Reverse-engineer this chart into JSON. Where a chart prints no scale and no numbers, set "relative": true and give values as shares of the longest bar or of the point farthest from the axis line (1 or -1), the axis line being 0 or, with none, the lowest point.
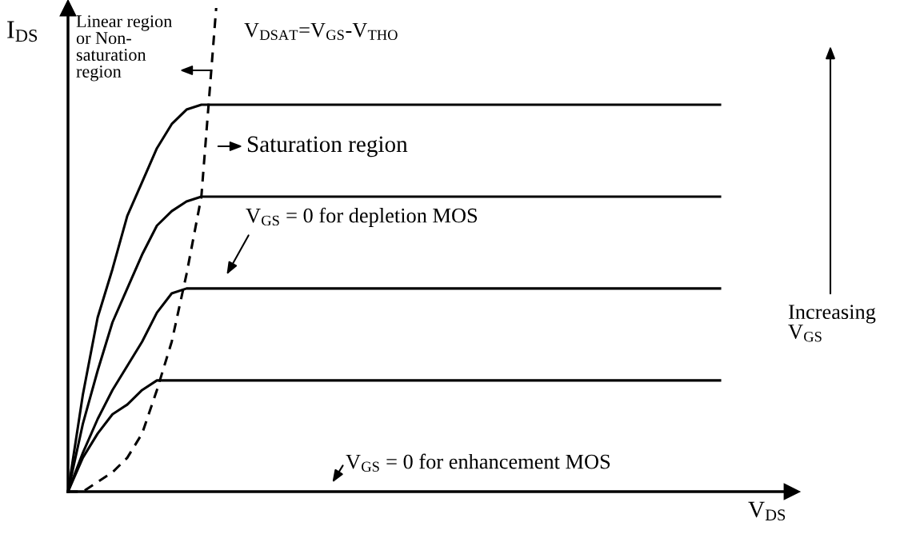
{
  "chart_data": {
    "type": "line",
    "relative": true,
    "marker": "none",
    "xlabel": "V$_{DS}$",
    "ylabel": "I$_{DS}$",
    "categories": [
      null,
      null,
      null,
      null,
      null,
      null,
      null,
      null,
      null,
      null,
      null,
      null,
      null,
      null,
      null,
      null,
      null,
      null,
      null,
      null,
      null,
      null,
      null,
      null,
      null,
      null,
      null,
      null,
      null,
      null,
      null,
      null,
      null,
      null,
      null,
      null,
      null,
      null,
      null,
      null,
      null,
      null,
      null,
      null,
      null
    ],
    "series": [
      {
        "color": "#000000",
        "line_style": "solid",
        "values": [
          0,
          0.2,
          0.36,
          0.46,
          0.57,
          0.64,
          0.71,
          0.76,
          0.79,
          0.8,
          0.8,
          0.8,
          0.8,
          0.8,
          0.8,
          0.8,
          0.8,
          0.8,
          0.8,
          0.8,
          0.8,
          0.8,
          0.8,
          0.8,
          0.8,
          0.8,
          0.8,
          0.8,
          0.8,
          0.8,
          0.8,
          0.8,
          0.8,
          0.8,
          0.8,
          0.8,
          0.8,
          0.8,
          0.8,
          0.8,
          0.8,
          0.8,
          0.8,
          0.8,
          0.8
        ]
      },
      {
        "color": "#000000",
        "line_style": "solid",
        "values": [
          0,
          0.14,
          0.25,
          0.35,
          0.42,
          0.49,
          0.55,
          0.58,
          0.6,
          0.61,
          0.61,
          0.61,
          0.61,
          0.61,
          0.61,
          0.61,
          0.61,
          0.61,
          0.61,
          0.61,
          0.61,
          0.61,
          0.61,
          0.61,
          0.61,
          0.61,
          0.61,
          0.61,
          0.61,
          0.61,
          0.61,
          0.61,
          0.61,
          0.61,
          0.61,
          0.61,
          0.61,
          0.61,
          0.61,
          0.61,
          0.61,
          0.61,
          0.61,
          0.61,
          0.61
        ]
      },
      {
        "color": "#000000",
        "line_style": "solid",
        "values": [
          0,
          0.08,
          0.15,
          0.21,
          0.26,
          0.31,
          0.37,
          0.41,
          0.42,
          0.42,
          0.42,
          0.42,
          0.42,
          0.42,
          0.42,
          0.42,
          0.42,
          0.42,
          0.42,
          0.42,
          0.42,
          0.42,
          0.42,
          0.42,
          0.42,
          0.42,
          0.42,
          0.42,
          0.42,
          0.42,
          0.42,
          0.42,
          0.42,
          0.42,
          0.42,
          0.42,
          0.42,
          0.42,
          0.42,
          0.42,
          0.42,
          0.42,
          0.42,
          0.42,
          0.42
        ]
      },
      {
        "color": "#000000",
        "line_style": "solid",
        "values": [
          0,
          0.07,
          0.12,
          0.16,
          0.18,
          0.21,
          0.23,
          0.23,
          0.23,
          0.23,
          0.23,
          0.23,
          0.23,
          0.23,
          0.23,
          0.23,
          0.23,
          0.23,
          0.23,
          0.23,
          0.23,
          0.23,
          0.23,
          0.23,
          0.23,
          0.23,
          0.23,
          0.23,
          0.23,
          0.23,
          0.23,
          0.23,
          0.23,
          0.23,
          0.23,
          0.23,
          0.23,
          0.23,
          0.23,
          0.23,
          0.23,
          0.23,
          0.23,
          0.23,
          0.23
        ]
      },
      {
        "name": "V$_{DSAT}$=V$_{GS}$-V$_{THO}$",
        "color": "#000000",
        "line_style": "dashed",
        "values": [
          0,
          0,
          0.02,
          0.04,
          0.07,
          0.12,
          0.21,
          0.31,
          0.45,
          0.61,
          1.0,
          null,
          null,
          null,
          null,
          null,
          null,
          null,
          null,
          null,
          null,
          null,
          null,
          null,
          null,
          null,
          null,
          null,
          null,
          null,
          null,
          null,
          null,
          null,
          null,
          null,
          null,
          null,
          null,
          null,
          null,
          null,
          null,
          null,
          null
        ]
      }
    ],
    "annotations": [
      "Linear region\nor Non-\nsaturation\nregion",
      "Saturation region",
      "V$_{GS}$ = 0 for depletion MOS",
      "V$_{GS}$ = 0 for enhancement MOS",
      "Increasing\nV$_{GS}$"
    ]
  }
}
